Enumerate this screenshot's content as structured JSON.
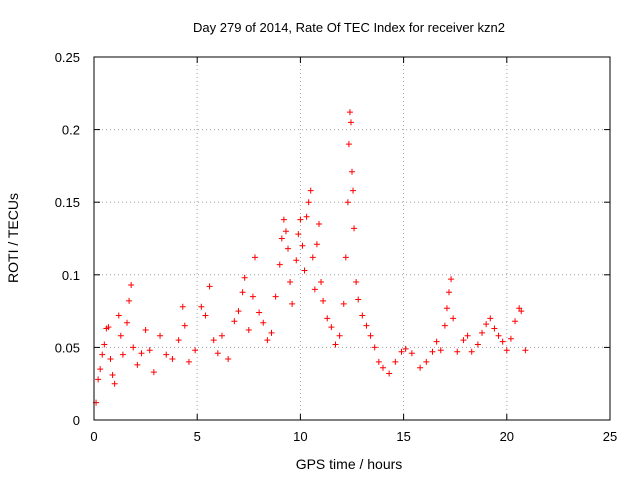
{
  "chart_data": {
    "type": "scatter",
    "title": "Day 279 of 2014, Rate Of TEC Index for receiver kzn2",
    "xlabel": "GPS time / hours",
    "ylabel": "ROTI / TECUs",
    "xlim": [
      0,
      25
    ],
    "ylim": [
      0,
      0.25
    ],
    "xticks": [
      "0",
      "5",
      "10",
      "15",
      "20",
      "25"
    ],
    "yticks": [
      "0",
      "0.05",
      "0.1",
      "0.15",
      "0.2",
      "0.25"
    ],
    "grid": true,
    "legend": "none",
    "marker": "plus",
    "color": "#ff0000",
    "series": [
      {
        "name": "ROTI",
        "points": [
          [
            0.1,
            0.012
          ],
          [
            0.2,
            0.028
          ],
          [
            0.3,
            0.035
          ],
          [
            0.4,
            0.045
          ],
          [
            0.5,
            0.052
          ],
          [
            0.6,
            0.063
          ],
          [
            0.7,
            0.064
          ],
          [
            0.8,
            0.042
          ],
          [
            0.9,
            0.031
          ],
          [
            1.0,
            0.025
          ],
          [
            1.2,
            0.072
          ],
          [
            1.3,
            0.058
          ],
          [
            1.4,
            0.045
          ],
          [
            1.6,
            0.067
          ],
          [
            1.7,
            0.082
          ],
          [
            1.8,
            0.093
          ],
          [
            1.9,
            0.05
          ],
          [
            2.1,
            0.038
          ],
          [
            2.3,
            0.046
          ],
          [
            2.5,
            0.062
          ],
          [
            2.7,
            0.048
          ],
          [
            2.9,
            0.033
          ],
          [
            3.2,
            0.058
          ],
          [
            3.5,
            0.045
          ],
          [
            3.8,
            0.042
          ],
          [
            4.1,
            0.055
          ],
          [
            4.3,
            0.078
          ],
          [
            4.4,
            0.065
          ],
          [
            4.6,
            0.04
          ],
          [
            4.9,
            0.048
          ],
          [
            5.2,
            0.078
          ],
          [
            5.4,
            0.072
          ],
          [
            5.6,
            0.092
          ],
          [
            5.8,
            0.055
          ],
          [
            6.0,
            0.046
          ],
          [
            6.2,
            0.058
          ],
          [
            6.5,
            0.042
          ],
          [
            6.8,
            0.068
          ],
          [
            7.0,
            0.075
          ],
          [
            7.2,
            0.088
          ],
          [
            7.3,
            0.098
          ],
          [
            7.5,
            0.062
          ],
          [
            7.7,
            0.085
          ],
          [
            7.8,
            0.112
          ],
          [
            8.0,
            0.074
          ],
          [
            8.2,
            0.067
          ],
          [
            8.4,
            0.055
          ],
          [
            8.6,
            0.06
          ],
          [
            8.8,
            0.085
          ],
          [
            9.0,
            0.107
          ],
          [
            9.1,
            0.125
          ],
          [
            9.2,
            0.138
          ],
          [
            9.3,
            0.13
          ],
          [
            9.4,
            0.118
          ],
          [
            9.5,
            0.095
          ],
          [
            9.6,
            0.08
          ],
          [
            9.8,
            0.11
          ],
          [
            9.9,
            0.128
          ],
          [
            10.0,
            0.138
          ],
          [
            10.1,
            0.12
          ],
          [
            10.2,
            0.103
          ],
          [
            10.3,
            0.14
          ],
          [
            10.4,
            0.15
          ],
          [
            10.5,
            0.158
          ],
          [
            10.6,
            0.112
          ],
          [
            10.7,
            0.09
          ],
          [
            10.8,
            0.121
          ],
          [
            10.9,
            0.135
          ],
          [
            11.0,
            0.095
          ],
          [
            11.1,
            0.082
          ],
          [
            11.3,
            0.07
          ],
          [
            11.5,
            0.064
          ],
          [
            11.7,
            0.052
          ],
          [
            11.9,
            0.058
          ],
          [
            12.1,
            0.08
          ],
          [
            12.2,
            0.112
          ],
          [
            12.3,
            0.15
          ],
          [
            12.35,
            0.19
          ],
          [
            12.4,
            0.212
          ],
          [
            12.45,
            0.205
          ],
          [
            12.5,
            0.171
          ],
          [
            12.55,
            0.158
          ],
          [
            12.6,
            0.132
          ],
          [
            12.7,
            0.095
          ],
          [
            12.8,
            0.083
          ],
          [
            13.0,
            0.072
          ],
          [
            13.2,
            0.065
          ],
          [
            13.4,
            0.058
          ],
          [
            13.6,
            0.05
          ],
          [
            13.8,
            0.04
          ],
          [
            14.0,
            0.036
          ],
          [
            14.3,
            0.032
          ],
          [
            14.6,
            0.04
          ],
          [
            14.9,
            0.047
          ],
          [
            15.1,
            0.049
          ],
          [
            15.4,
            0.046
          ],
          [
            15.8,
            0.036
          ],
          [
            16.1,
            0.04
          ],
          [
            16.4,
            0.047
          ],
          [
            16.6,
            0.054
          ],
          [
            16.8,
            0.048
          ],
          [
            17.0,
            0.065
          ],
          [
            17.1,
            0.077
          ],
          [
            17.2,
            0.088
          ],
          [
            17.3,
            0.097
          ],
          [
            17.4,
            0.07
          ],
          [
            17.6,
            0.047
          ],
          [
            17.9,
            0.055
          ],
          [
            18.1,
            0.058
          ],
          [
            18.3,
            0.047
          ],
          [
            18.6,
            0.052
          ],
          [
            18.8,
            0.06
          ],
          [
            19.0,
            0.066
          ],
          [
            19.2,
            0.07
          ],
          [
            19.4,
            0.063
          ],
          [
            19.6,
            0.058
          ],
          [
            19.8,
            0.054
          ],
          [
            20.0,
            0.048
          ],
          [
            20.2,
            0.056
          ],
          [
            20.4,
            0.068
          ],
          [
            20.6,
            0.077
          ],
          [
            20.7,
            0.075
          ],
          [
            20.9,
            0.048
          ]
        ]
      }
    ]
  }
}
